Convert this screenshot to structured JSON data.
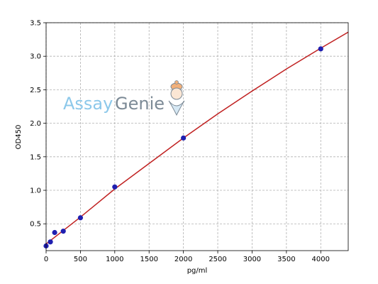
{
  "chart_data": {
    "type": "scatter",
    "xlabel": "pg/ml",
    "ylabel": "OD450",
    "xlim": [
      0,
      4400
    ],
    "ylim": [
      0.1,
      3.5
    ],
    "xticks": [
      0,
      500,
      1000,
      1500,
      2000,
      2500,
      3000,
      3500,
      4000
    ],
    "yticks": [
      0.5,
      1.0,
      1.5,
      2.0,
      2.5,
      3.0,
      3.5
    ],
    "ytick_labels": [
      "0.5",
      "1.0",
      "1.5",
      "2.0",
      "2.5",
      "3.0",
      "3.5"
    ],
    "grid": true,
    "points": {
      "x": [
        0,
        62.5,
        125,
        250,
        500,
        1000,
        2000,
        4000
      ],
      "y": [
        0.17,
        0.23,
        0.37,
        0.39,
        0.59,
        1.05,
        1.78,
        3.11
      ],
      "color": "#1f1fb0"
    },
    "fit_curve": {
      "x": [
        0,
        250,
        500,
        1000,
        1500,
        2000,
        2500,
        3000,
        3500,
        4000,
        4400
      ],
      "y": [
        0.2,
        0.4,
        0.6,
        1.02,
        1.4,
        1.78,
        2.14,
        2.48,
        2.81,
        3.12,
        3.36
      ],
      "color": "#c02020"
    }
  },
  "watermark": {
    "part1": "Assay",
    "part2": "Genie",
    "part1_color": "#8cc8ea",
    "part2_color": "#7c8a96",
    "logo_icon": "genie-icon"
  }
}
